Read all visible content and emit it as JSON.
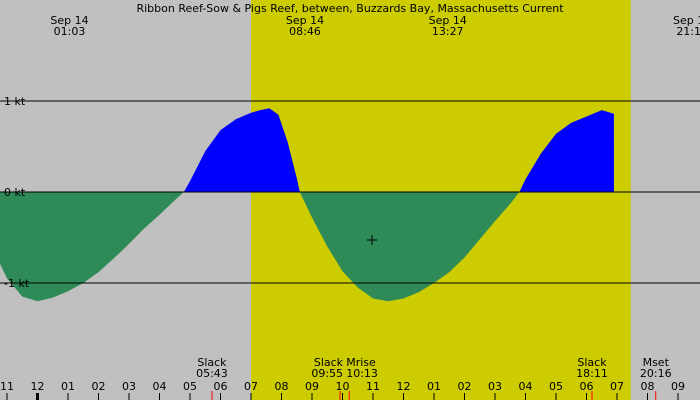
{
  "chart_data": {
    "type": "area",
    "title": "Ribbon Reef-Sow & Pigs Reef, between, Buzzards Bay, Massachusetts Current",
    "xlabel": "",
    "ylabel": "",
    "ylim": [
      -2.1,
      2.1
    ],
    "y_ticks": [
      {
        "value": 1,
        "label": "1 kt"
      },
      {
        "value": 0,
        "label": "0 kt"
      },
      {
        "value": -1,
        "label": "-1 kt"
      }
    ],
    "x_range_hours": [
      10.6,
      33.4
    ],
    "x_tick_labels": [
      "11",
      "12",
      "01",
      "02",
      "03",
      "04",
      "05",
      "06",
      "07",
      "08",
      "09",
      "10",
      "11",
      "12",
      "01",
      "02",
      "03",
      "04",
      "05",
      "06",
      "07",
      "08",
      "09"
    ],
    "daylight": {
      "start_hour": 31.0,
      "end_hour": 43.45
    },
    "flood_color": "#0000ff",
    "ebb_color": "#2e8b57",
    "daylight_color": "#cccc00",
    "night_color": "#c0c0c0",
    "top_events": [
      {
        "date": "Sep 14",
        "time": "01:03",
        "hour": 25.05
      },
      {
        "date": "Sep 14",
        "time": "08:46",
        "hour": 32.77
      },
      {
        "date": "Sep 14",
        "time": "13:27",
        "hour": 37.45
      },
      {
        "date": "Sep 1",
        "time": "21:1",
        "hour": 45.35
      }
    ],
    "bottom_events": [
      {
        "label": "Slack",
        "time": "05:43",
        "hour": 29.72,
        "anchor": "middle"
      },
      {
        "label": "Slack",
        "time": "09:55",
        "hour": 33.92,
        "anchor": "end"
      },
      {
        "label": "Mrise",
        "time": "10:13",
        "hour": 34.22,
        "anchor": "start"
      },
      {
        "label": "Slack",
        "time": "18:11",
        "hour": 42.18,
        "anchor": "middle"
      },
      {
        "label": "Mset",
        "time": "20:16",
        "hour": 44.27,
        "anchor": "middle"
      }
    ],
    "current_points": [
      [
        22.6,
        -0.67
      ],
      [
        23.0,
        -0.95
      ],
      [
        23.5,
        -1.15
      ],
      [
        24.0,
        -1.2
      ],
      [
        24.5,
        -1.16
      ],
      [
        25.0,
        -1.09
      ],
      [
        25.5,
        -1.0
      ],
      [
        26.0,
        -0.88
      ],
      [
        26.5,
        -0.73
      ],
      [
        27.0,
        -0.57
      ],
      [
        27.5,
        -0.4
      ],
      [
        28.0,
        -0.25
      ],
      [
        28.5,
        -0.09
      ],
      [
        28.8,
        0.0
      ],
      [
        29.0,
        0.12
      ],
      [
        29.5,
        0.45
      ],
      [
        30.0,
        0.68
      ],
      [
        30.5,
        0.8
      ],
      [
        31.0,
        0.87
      ],
      [
        31.3,
        0.9
      ],
      [
        31.6,
        0.92
      ],
      [
        31.9,
        0.85
      ],
      [
        32.2,
        0.55
      ],
      [
        32.5,
        0.15
      ],
      [
        32.6,
        0.0
      ],
      [
        33.0,
        -0.28
      ],
      [
        33.5,
        -0.6
      ],
      [
        34.0,
        -0.87
      ],
      [
        34.5,
        -1.05
      ],
      [
        35.0,
        -1.17
      ],
      [
        35.5,
        -1.2
      ],
      [
        36.0,
        -1.17
      ],
      [
        36.5,
        -1.1
      ],
      [
        37.0,
        -1.0
      ],
      [
        37.5,
        -0.88
      ],
      [
        38.0,
        -0.72
      ],
      [
        38.5,
        -0.52
      ],
      [
        39.0,
        -0.32
      ],
      [
        39.5,
        -0.13
      ],
      [
        39.8,
        0.0
      ],
      [
        40.0,
        0.14
      ],
      [
        40.5,
        0.42
      ],
      [
        41.0,
        0.64
      ],
      [
        41.5,
        0.76
      ],
      [
        42.0,
        0.83
      ],
      [
        42.5,
        0.9
      ],
      [
        42.9,
        0.86
      ]
    ]
  }
}
